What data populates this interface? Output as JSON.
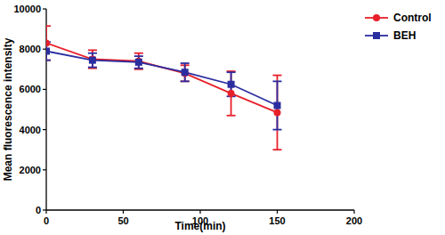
{
  "chart_data": {
    "type": "line",
    "x_label": "Time(min)",
    "y_label": "Mean fluorescence intensity",
    "x": [
      0,
      30,
      60,
      90,
      120,
      150
    ],
    "series": [
      {
        "name": "Control",
        "color": "#e8202a",
        "marker": "circle",
        "line_style": "solid",
        "values": [
          8300,
          7500,
          7400,
          6800,
          5800,
          4850
        ],
        "errors": [
          850,
          450,
          400,
          400,
          1100,
          1850
        ]
      },
      {
        "name": "BEH",
        "color": "#2b2ea0",
        "marker": "square",
        "line_style": "solid",
        "values": [
          7900,
          7450,
          7350,
          6850,
          6250,
          5200
        ],
        "errors": [
          450,
          350,
          300,
          450,
          600,
          1200
        ]
      }
    ],
    "xlim": [
      0,
      200
    ],
    "xticks": [
      0,
      50,
      100,
      150,
      200
    ],
    "ylim": [
      0,
      10000
    ],
    "yticks": [
      0,
      2000,
      4000,
      6000,
      8000,
      10000
    ],
    "grid": false,
    "legend": "upper right"
  }
}
